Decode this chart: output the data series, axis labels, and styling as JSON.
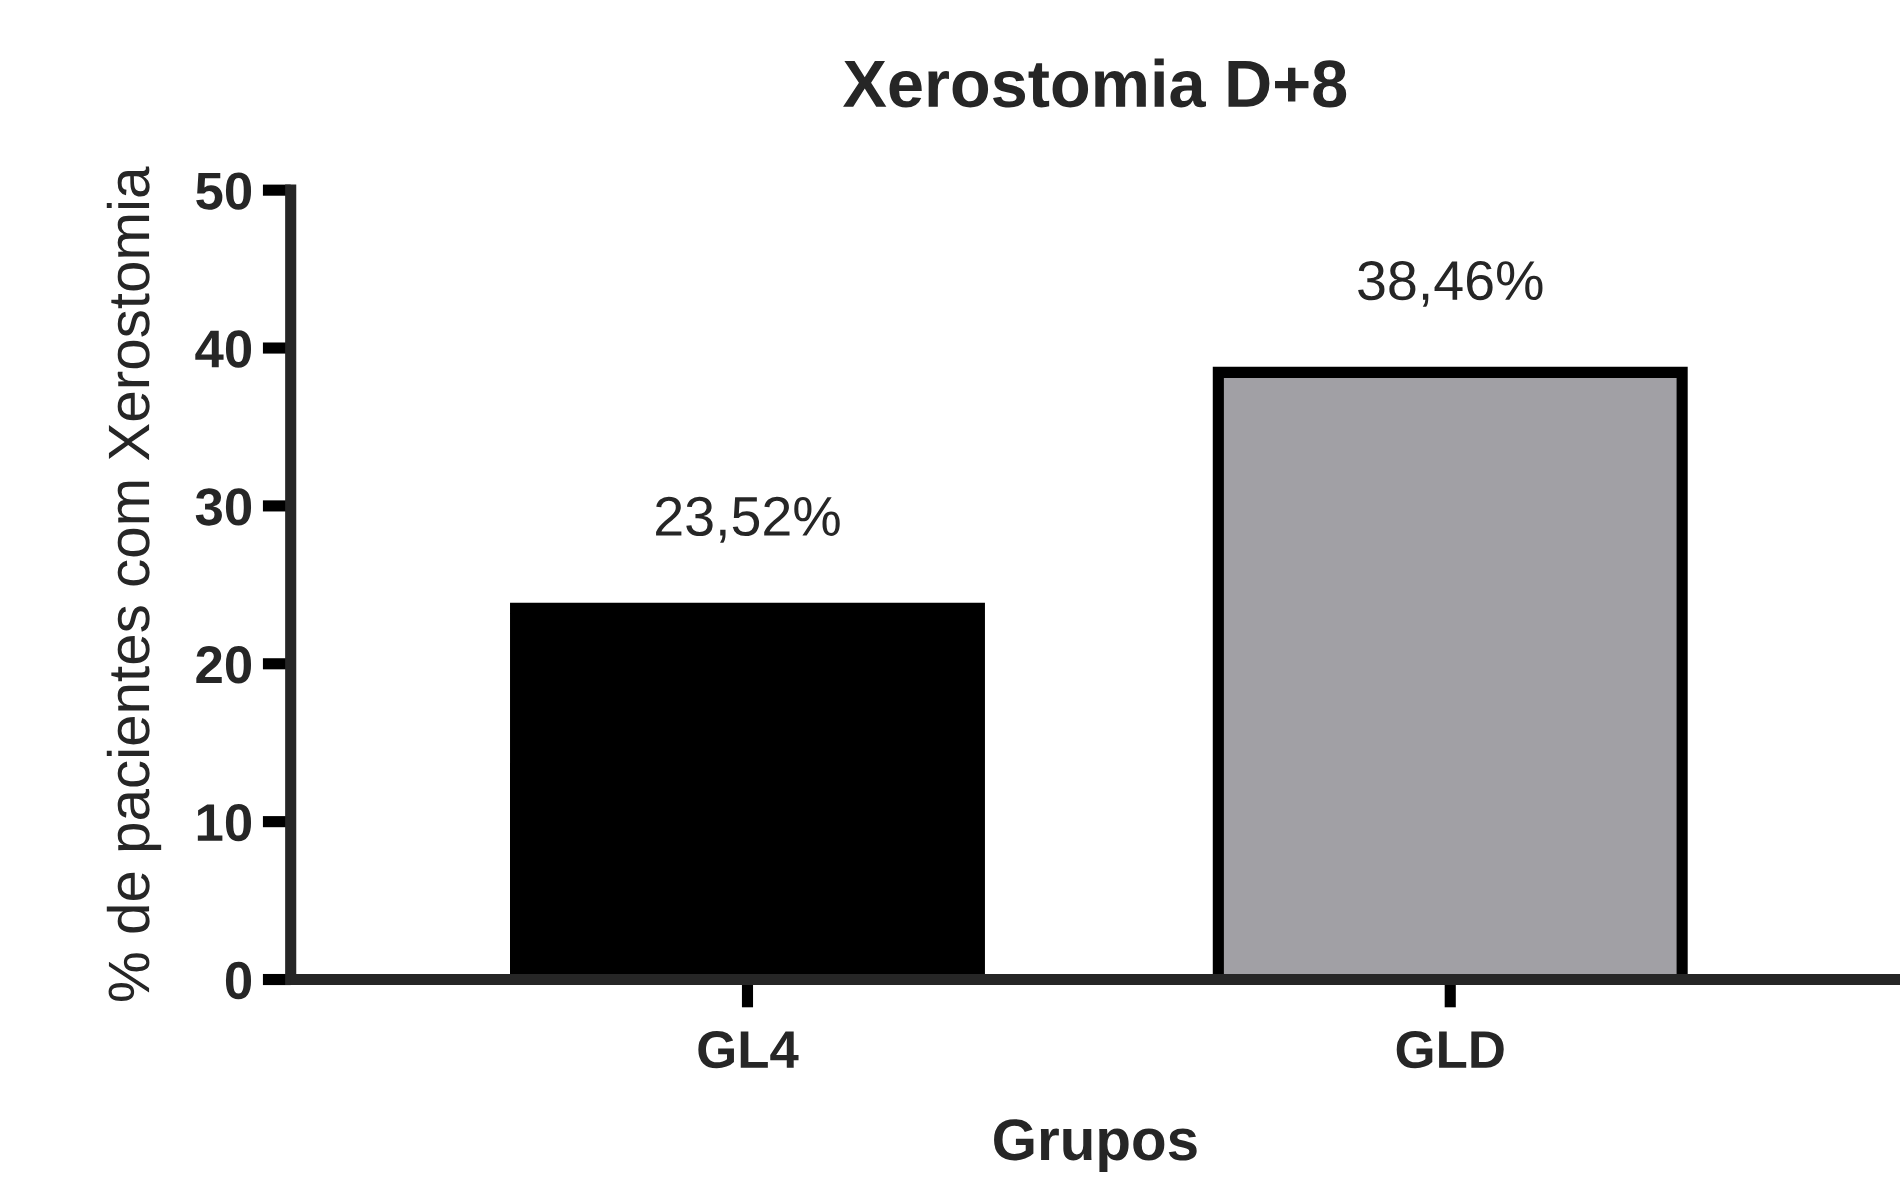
{
  "chart_data": {
    "type": "bar",
    "title": "Xerostomia D+8",
    "xlabel": "Grupos",
    "ylabel": "% de pacientes com Xerostomia",
    "categories": [
      "GL4",
      "GLD"
    ],
    "values": [
      23.52,
      38.46
    ],
    "colors": [
      "#000000",
      "#a1a0a5"
    ],
    "value_labels": [
      "23,52%",
      "38,46%"
    ],
    "ylim": [
      0,
      50
    ],
    "yticks": [
      0,
      10,
      20,
      30,
      40,
      50
    ]
  }
}
